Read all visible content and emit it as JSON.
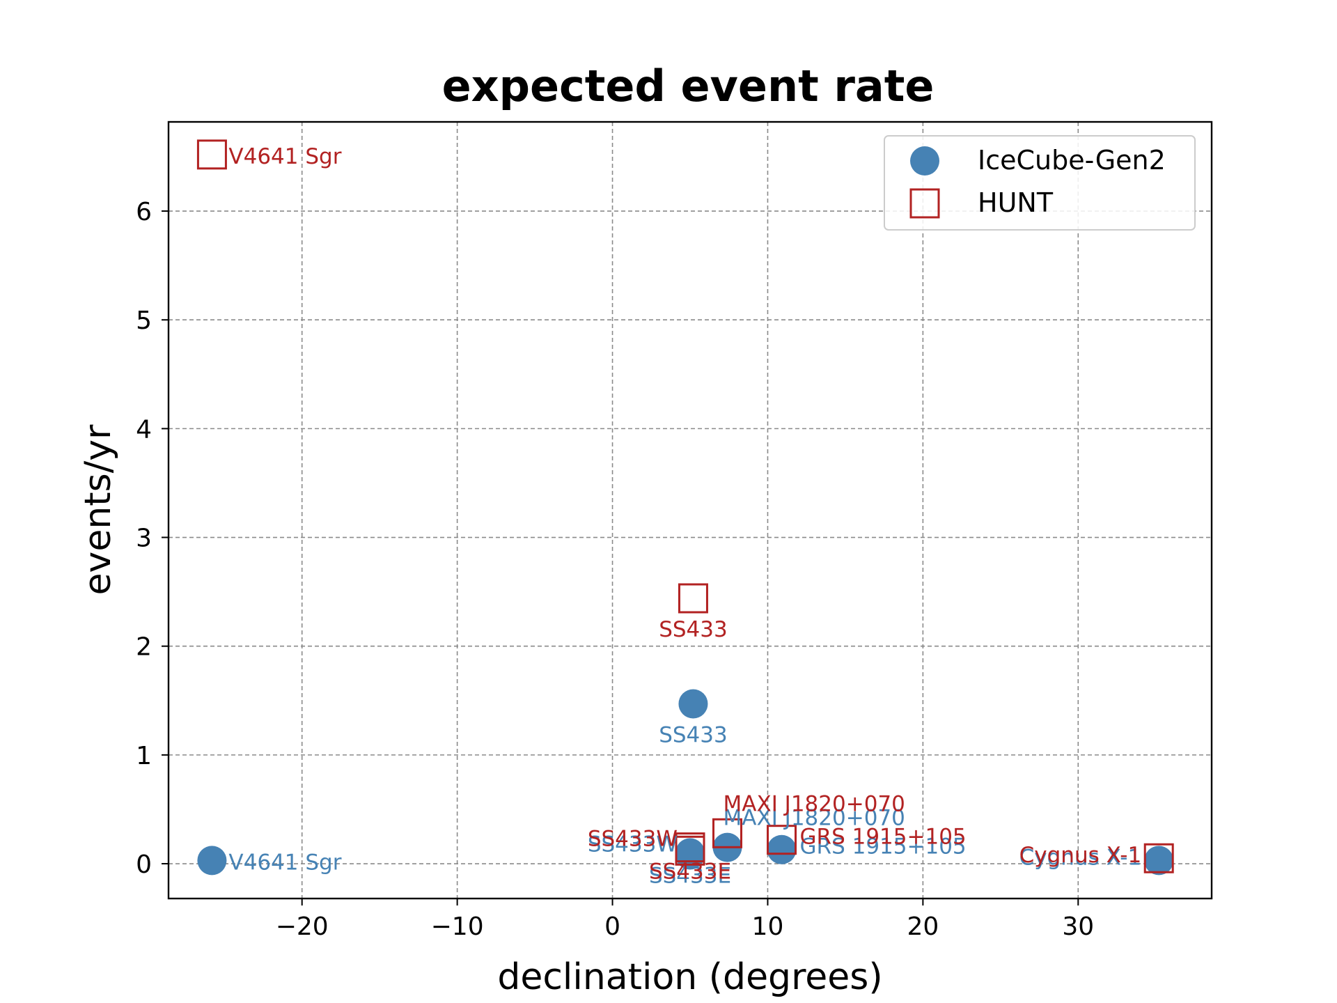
{
  "chart_data": {
    "type": "scatter",
    "title": "expected event rate",
    "xlabel": "declination (degrees)",
    "ylabel": "events/yr",
    "xlim": [
      -28.6,
      38.6
    ],
    "ylim": [
      -0.32,
      6.82
    ],
    "xticks": [
      -20,
      -10,
      0,
      10,
      20,
      30
    ],
    "xtick_labels": [
      "−20",
      "−10",
      "0",
      "10",
      "20",
      "30"
    ],
    "yticks": [
      0,
      1,
      2,
      3,
      4,
      5,
      6
    ],
    "ytick_labels": [
      "0",
      "1",
      "2",
      "3",
      "4",
      "5",
      "6"
    ],
    "grid": true,
    "legend_position": "top-right",
    "series": [
      {
        "name": "IceCube-Gen2",
        "marker": "filled-circle",
        "color": "#4682b4",
        "points": [
          {
            "label": "V4641 Sgr",
            "x": -25.8,
            "y": 0.03
          },
          {
            "label": "SS433",
            "x": 5.2,
            "y": 1.47
          },
          {
            "label": "SS433W",
            "x": 5.0,
            "y": 0.1
          },
          {
            "label": "SS433E",
            "x": 5.0,
            "y": 0.08
          },
          {
            "label": "MAXI J1820+070",
            "x": 7.4,
            "y": 0.15
          },
          {
            "label": "GRS 1915+105",
            "x": 10.9,
            "y": 0.13
          },
          {
            "label": "Cygnus X-1",
            "x": 35.2,
            "y": 0.03
          }
        ]
      },
      {
        "name": "HUNT",
        "marker": "open-square",
        "color": "#b22222",
        "points": [
          {
            "label": "V4641 Sgr",
            "x": -25.8,
            "y": 6.52
          },
          {
            "label": "SS433",
            "x": 5.2,
            "y": 2.44
          },
          {
            "label": "SS433W",
            "x": 5.0,
            "y": 0.15
          },
          {
            "label": "SS433E",
            "x": 5.0,
            "y": 0.12
          },
          {
            "label": "MAXI J1820+070",
            "x": 7.4,
            "y": 0.28
          },
          {
            "label": "GRS 1915+105",
            "x": 10.9,
            "y": 0.22
          },
          {
            "label": "Cygnus X-1",
            "x": 35.2,
            "y": 0.05
          }
        ]
      }
    ]
  }
}
